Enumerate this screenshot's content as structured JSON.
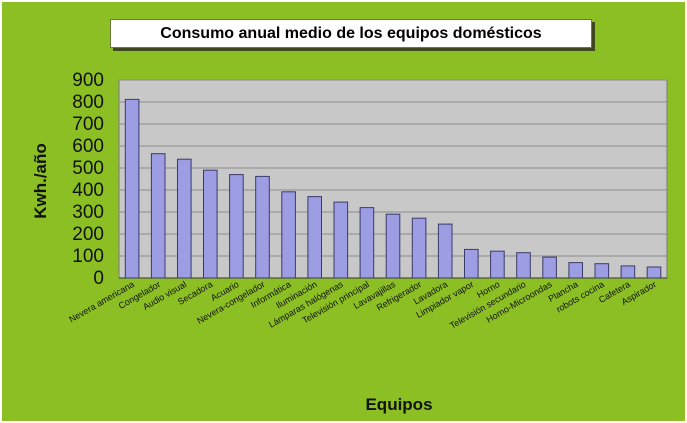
{
  "chart_data": {
    "type": "bar",
    "title": "Consumo anual medio de los equipos domésticos",
    "xlabel": "Equipos",
    "ylabel": "Kwh./año",
    "ylim": [
      0,
      900
    ],
    "yticks": [
      0,
      100,
      200,
      300,
      400,
      500,
      600,
      700,
      800,
      900
    ],
    "grid": true,
    "legend": "none",
    "colors": {
      "bar": "#9d9de3",
      "bar_stroke": "#3a3a6a",
      "plot_bg": "#c8c8c8",
      "frame_bg": "#8cbf24",
      "grid": "#8c8c8c"
    },
    "categories": [
      "Nevera americana",
      "Congelador",
      "Audio visual",
      "Secadora",
      "Acuario",
      "Nevera-congelador",
      "Informática",
      "Iluminación",
      "Lámparas halógenas",
      "Televisión principal",
      "Lavavajillas",
      "Refrigerador",
      "Lavadora",
      "Limpiador vapor",
      "Horno",
      "Televisión secundario",
      "Horno-Microondas",
      "Plancha",
      "robots cocina",
      "Cafetera",
      "Aspirador"
    ],
    "values": [
      812,
      565,
      540,
      490,
      470,
      462,
      392,
      370,
      345,
      320,
      290,
      272,
      245,
      130,
      122,
      115,
      95,
      70,
      65,
      55,
      50
    ]
  }
}
